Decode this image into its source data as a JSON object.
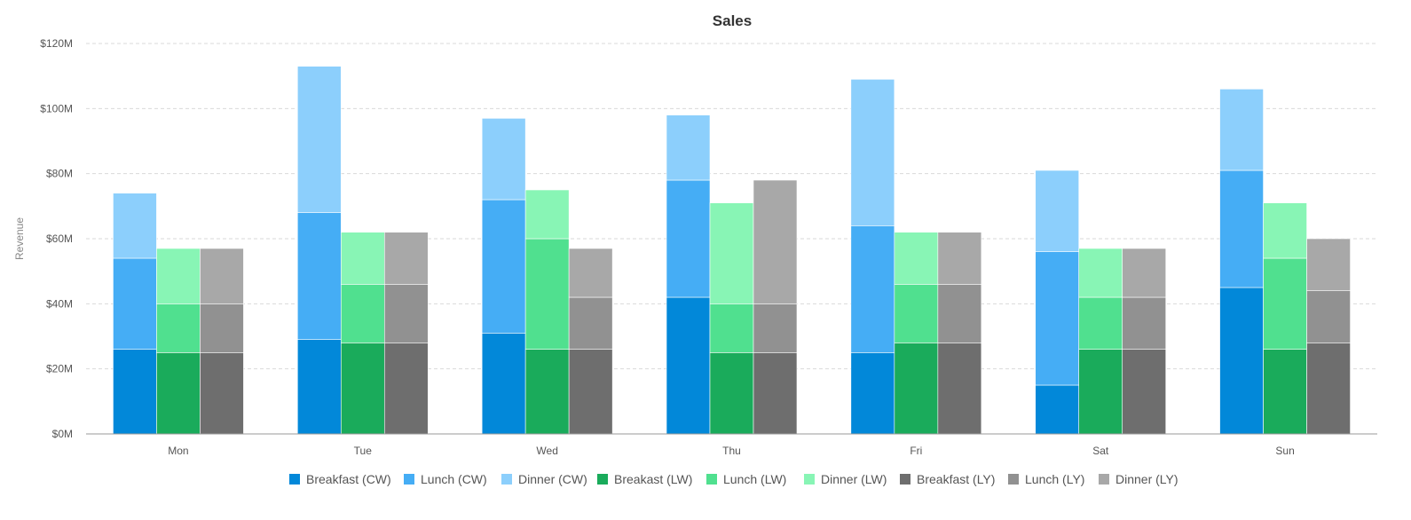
{
  "chart_data": {
    "type": "bar",
    "stacked": true,
    "title": "Sales",
    "xlabel": "",
    "ylabel": "Revenue",
    "ylim": [
      0,
      120
    ],
    "y_ticks": [
      0,
      20,
      40,
      60,
      80,
      100,
      120
    ],
    "y_tick_labels": [
      "$0M",
      "$20M",
      "$40M",
      "$60M",
      "$80M",
      "$100M",
      "$120M"
    ],
    "grid": true,
    "legend_position": "bottom",
    "categories": [
      "Mon",
      "Tue",
      "Wed",
      "Thu",
      "Fri",
      "Sat",
      "Sun"
    ],
    "stacks": [
      {
        "key": "CW",
        "series": [
          {
            "name": "Breakfast (CW)",
            "color": "#0288d9",
            "values": [
              26,
              29,
              31,
              42,
              25,
              15,
              45
            ]
          },
          {
            "name": "Lunch (CW)",
            "color": "#45adf5",
            "values": [
              28,
              39,
              41,
              36,
              39,
              41,
              36
            ]
          },
          {
            "name": "Dinner (CW)",
            "color": "#8ccffc",
            "values": [
              20,
              45,
              25,
              20,
              45,
              25,
              25
            ]
          }
        ]
      },
      {
        "key": "LW",
        "series": [
          {
            "name": "Breakast (LW)",
            "color": "#1aab5b",
            "values": [
              25,
              28,
              26,
              25,
              28,
              26,
              26
            ]
          },
          {
            "name": "Lunch (LW)",
            "color": "#50e08f",
            "values": [
              15,
              18,
              34,
              15,
              18,
              16,
              28
            ]
          },
          {
            "name": "Dinner (LW)",
            "color": "#88f5b5",
            "values": [
              17,
              16,
              15,
              31,
              16,
              15,
              17
            ]
          }
        ]
      },
      {
        "key": "LY",
        "series": [
          {
            "name": "Breakfast (LY)",
            "color": "#6e6e6e",
            "values": [
              25,
              28,
              26,
              25,
              28,
              26,
              28
            ]
          },
          {
            "name": "Lunch (LY)",
            "color": "#919191",
            "values": [
              15,
              18,
              16,
              15,
              18,
              16,
              16
            ]
          },
          {
            "name": "Dinner (LY)",
            "color": "#a8a8a8",
            "values": [
              17,
              16,
              15,
              38,
              16,
              15,
              16
            ]
          }
        ]
      }
    ]
  }
}
